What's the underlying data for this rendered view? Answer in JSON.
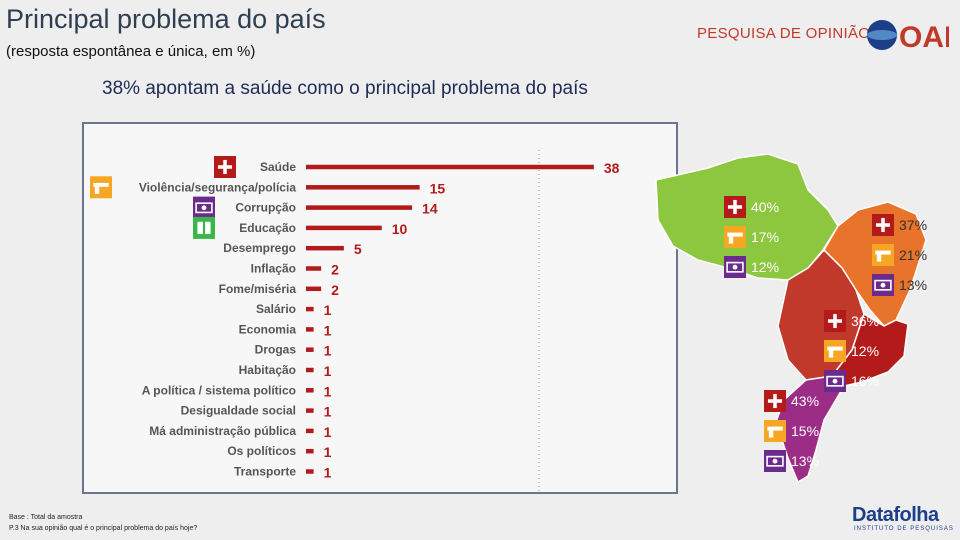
{
  "title": "Principal problema do país",
  "subtitle": "(resposta espontânea e única, em %)",
  "headline": "38% apontam a saúde como o principal problema do país",
  "brand": {
    "text": "PESQUISA DE OPINIÃO",
    "logo": "OAB"
  },
  "footnotes": {
    "base": "Base : Total da amostra",
    "question": "P.3 Na sua opinião qual é o principal problema do país hoje?"
  },
  "datafolha": {
    "name": "Datafolha",
    "subtitle": "INSTITUTO DE PESQUISAS"
  },
  "colors": {
    "bar": "#b31b1b",
    "label": "#555555",
    "value": "#b31b1b",
    "health_icon": "#b31b1b",
    "violence_icon": "#f5a623",
    "corruption_icon": "#6a2b8c",
    "education_icon": "#3bb54a",
    "north": "#8dc63f",
    "northeast": "#e8732a",
    "centerwest": "#c0392b",
    "southeast": "#b31b1b",
    "south": "#9b2d86"
  },
  "chart_data": {
    "type": "bar",
    "orientation": "horizontal",
    "categories": [
      "Saúde",
      "Violência/segurança/polícia",
      "Corrupção",
      "Educação",
      "Desemprego",
      "Inflação",
      "Fome/miséria",
      "Salário",
      "Economia",
      "Drogas",
      "Habitação",
      "A política / sistema político",
      "Desigualdade social",
      "Má administração pública",
      "Os políticos",
      "Transporte"
    ],
    "values": [
      38,
      15,
      14,
      10,
      5,
      2,
      2,
      1,
      1,
      1,
      1,
      1,
      1,
      1,
      1,
      1
    ],
    "category_icons": [
      "health-icon",
      "gun-icon",
      "money-icon",
      "book-icon",
      null,
      null,
      null,
      null,
      null,
      null,
      null,
      null,
      null,
      null,
      null,
      null
    ],
    "xlim": [
      0,
      40
    ],
    "grid": false
  },
  "regions": [
    {
      "id": "north",
      "values": [
        {
          "icon": "health-icon",
          "label": "40%"
        },
        {
          "icon": "gun-icon",
          "label": "17%"
        },
        {
          "icon": "money-icon",
          "label": "12%"
        }
      ]
    },
    {
      "id": "northeast",
      "values": [
        {
          "icon": "health-icon",
          "label": "37%"
        },
        {
          "icon": "gun-icon",
          "label": "21%"
        },
        {
          "icon": "money-icon",
          "label": "13%"
        }
      ]
    },
    {
      "id": "centerwest-southeast",
      "values": [
        {
          "icon": "health-icon",
          "label": "36%"
        },
        {
          "icon": "gun-icon",
          "label": "12%"
        },
        {
          "icon": "money-icon",
          "label": "16%"
        }
      ]
    },
    {
      "id": "south",
      "values": [
        {
          "icon": "health-icon",
          "label": "43%"
        },
        {
          "icon": "gun-icon",
          "label": "15%"
        },
        {
          "icon": "money-icon",
          "label": "13%"
        }
      ]
    }
  ]
}
